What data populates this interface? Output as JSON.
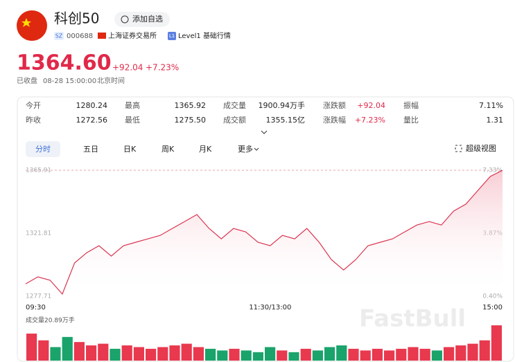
{
  "header": {
    "name": "科创50",
    "add_button": "添加自选",
    "market": "SZ",
    "code": "000688",
    "exchange": "上海证券交易所",
    "level_badge": "L1",
    "level": "Level1 基础行情"
  },
  "quote": {
    "price": "1364.60",
    "change": "+92.04",
    "change_pct": "+7.23%",
    "status": "已收盘",
    "time": "08-28 15:00:00",
    "timezone": "北京时间"
  },
  "stats": {
    "rows": [
      [
        {
          "label": "今开",
          "value": "1280.24"
        },
        {
          "label": "最高",
          "value": "1365.92"
        },
        {
          "label": "成交量",
          "value": "1900.94万手"
        },
        {
          "label": "涨跌额",
          "value": "+92.04"
        },
        {
          "label": "振幅",
          "value": "7.11%"
        }
      ],
      [
        {
          "label": "昨收",
          "value": "1272.56"
        },
        {
          "label": "最低",
          "value": "1275.50"
        },
        {
          "label": "成交额",
          "value": "1355.15亿"
        },
        {
          "label": "涨跌幅",
          "value": "+7.23%"
        },
        {
          "label": "量比",
          "value": "1.31"
        }
      ]
    ]
  },
  "tabs": [
    "分时",
    "五日",
    "日K",
    "周K",
    "月K",
    "更多"
  ],
  "fullscreen": "超级视图",
  "watermark": "FastBull",
  "chart_data": [
    {
      "type": "line",
      "color": "#d9344f",
      "categories": [
        "09:30",
        null,
        null,
        null,
        null,
        null,
        null,
        null,
        null,
        null,
        null,
        null,
        null,
        null,
        null,
        null,
        null,
        null,
        null,
        null,
        "11:30/13:00",
        null,
        null,
        null,
        null,
        null,
        null,
        null,
        null,
        null,
        null,
        null,
        null,
        null,
        null,
        null,
        null,
        null,
        null,
        "15:00"
      ],
      "values": [
        1286.4,
        1291.3,
        1288.9,
        1279.2,
        1301.0,
        1308.2,
        1313.1,
        1305.8,
        1313.1,
        1315.5,
        1317.9,
        1320.3,
        1325.2,
        1330.0,
        1334.9,
        1325.2,
        1317.9,
        1325.2,
        1322.8,
        1315.5,
        1313.1,
        1320.3,
        1317.9,
        1325.2,
        1315.5,
        1303.4,
        1296.1,
        1303.4,
        1313.1,
        1315.5,
        1317.9,
        1322.8,
        1327.6,
        1330.0,
        1327.6,
        1337.3,
        1342.2,
        1351.9,
        1361.6,
        1365.91
      ],
      "ylim": [
        1277.71,
        1365.91
      ],
      "yticks": [
        1277.71,
        1321.81,
        1365.91
      ],
      "y2lim": [
        0.4,
        7.33
      ],
      "y2ticks": [
        {
          "value": 0.4,
          "label": "0.40%"
        },
        {
          "value": 3.87,
          "label": "3.87%"
        },
        {
          "value": 7.33,
          "label": "7.33%"
        }
      ]
    },
    {
      "type": "bar",
      "title": "成交量20.89万手",
      "ylim": [
        0,
        20.89
      ],
      "values": [
        16,
        12,
        8,
        14,
        11,
        9,
        10,
        7,
        9,
        8,
        7,
        8,
        9,
        10,
        8,
        7,
        6,
        7,
        6,
        5,
        8,
        6,
        5,
        7,
        6,
        8,
        9,
        7,
        6,
        7,
        6,
        7,
        8,
        7,
        6,
        8,
        9,
        10,
        12,
        20.89
      ],
      "colors": [
        "#e8394f",
        "#e8394f",
        "#1aa36b",
        "#1aa36b",
        "#e8394f",
        "#e8394f",
        "#e8394f",
        "#1aa36b",
        "#e8394f",
        "#e8394f",
        "#e8394f",
        "#e8394f",
        "#e8394f",
        "#e8394f",
        "#e8394f",
        "#1aa36b",
        "#1aa36b",
        "#e8394f",
        "#1aa36b",
        "#1aa36b",
        "#1aa36b",
        "#e8394f",
        "#1aa36b",
        "#e8394f",
        "#1aa36b",
        "#1aa36b",
        "#1aa36b",
        "#e8394f",
        "#e8394f",
        "#e8394f",
        "#e8394f",
        "#e8394f",
        "#e8394f",
        "#e8394f",
        "#1aa36b",
        "#e8394f",
        "#e8394f",
        "#e8394f",
        "#e8394f",
        "#e8394f"
      ]
    }
  ]
}
